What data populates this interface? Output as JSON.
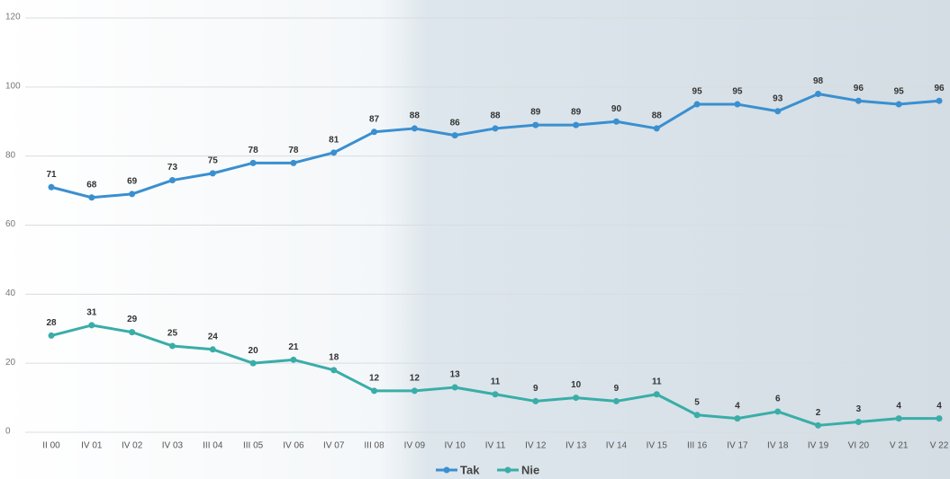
{
  "chart_data": {
    "type": "line",
    "categories": [
      "II 00",
      "IV 01",
      "IV 02",
      "IV 03",
      "III 04",
      "III 05",
      "IV 06",
      "IV 07",
      "III 08",
      "IV 09",
      "IV 10",
      "IV 11",
      "IV 12",
      "IV 13",
      "IV 14",
      "IV 15",
      "III 16",
      "IV 17",
      "IV 18",
      "IV 19",
      "VI 20",
      "V 21",
      "V 22"
    ],
    "series": [
      {
        "name": "Tak",
        "color": "#3a8fd0",
        "values": [
          71,
          68,
          69,
          73,
          75,
          78,
          78,
          81,
          87,
          88,
          86,
          88,
          89,
          89,
          90,
          88,
          95,
          95,
          93,
          98,
          96,
          95,
          96
        ]
      },
      {
        "name": "Nie",
        "color": "#3aada8",
        "values": [
          28,
          31,
          29,
          25,
          24,
          20,
          21,
          18,
          12,
          12,
          13,
          11,
          9,
          10,
          9,
          11,
          5,
          4,
          6,
          2,
          3,
          4,
          4
        ]
      }
    ],
    "ylim": [
      0,
      120
    ],
    "yticks": [
      0,
      20,
      40,
      60,
      80,
      100,
      120
    ],
    "grid": true,
    "legend": "bottom"
  }
}
